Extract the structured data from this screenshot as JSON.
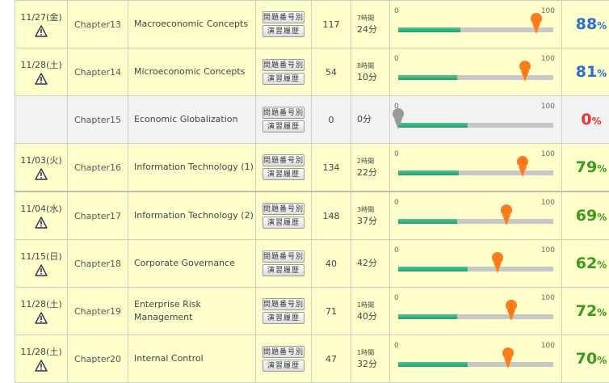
{
  "bar_scale": {
    "min_label": "0",
    "max_label": "100"
  },
  "buttons": {
    "questions_label": "問題番号別",
    "history_label": "演習履歴"
  },
  "colors": {
    "high": "#2a6fd8",
    "mid": "#3a9a1a",
    "zero": "#e53333",
    "marker": "#ff7a1a",
    "marker_inactive": "#999999"
  },
  "rows": [
    {
      "date": "11/27(金)",
      "warn": true,
      "chapter": "Chapter13",
      "title": "Macroeconomic Concepts",
      "count": "117",
      "hours": "7時間",
      "minutes": "24分",
      "progress": 0.4,
      "marker": 0.89,
      "percent_value": "88",
      "percent_unit": "%",
      "tone": "high"
    },
    {
      "date": "11/28(土)",
      "warn": true,
      "chapter": "Chapter14",
      "title": "Microeconomic Concepts",
      "count": "54",
      "hours": "8時間",
      "minutes": "10分",
      "progress": 0.38,
      "marker": 0.82,
      "percent_value": "81",
      "percent_unit": "%",
      "tone": "high"
    },
    {
      "date": "",
      "warn": false,
      "chapter": "Chapter15",
      "title": "Economic Globalization",
      "count": "0",
      "hours": "",
      "minutes": "0分",
      "progress": 0.45,
      "marker": 0.0,
      "percent_value": "0",
      "percent_unit": "%",
      "tone": "zero",
      "gray": true
    },
    {
      "date": "11/03(火)",
      "warn": true,
      "chapter": "Chapter16",
      "title": "Information Technology (1)",
      "count": "134",
      "hours": "2時間",
      "minutes": "22分",
      "progress": 0.39,
      "marker": 0.8,
      "percent_value": "79",
      "percent_unit": "%",
      "tone": "mid"
    },
    {
      "date": "11/04(水)",
      "warn": true,
      "chapter": "Chapter17",
      "title": "Information Technology (2)",
      "count": "148",
      "hours": "3時間",
      "minutes": "37分",
      "progress": 0.38,
      "marker": 0.7,
      "percent_value": "69",
      "percent_unit": "%",
      "tone": "mid",
      "topgap": true
    },
    {
      "date": "11/15(日)",
      "warn": true,
      "chapter": "Chapter18",
      "title": "Corporate Governance",
      "count": "40",
      "hours": "",
      "minutes": "42分",
      "progress": 0.45,
      "marker": 0.64,
      "percent_value": "62",
      "percent_unit": "%",
      "tone": "mid"
    },
    {
      "date": "11/28(土)",
      "warn": true,
      "chapter": "Chapter19",
      "title": "Enterprise Risk Management",
      "count": "71",
      "hours": "1時間",
      "minutes": "40分",
      "progress": 0.38,
      "marker": 0.73,
      "percent_value": "72",
      "percent_unit": "%",
      "tone": "mid"
    },
    {
      "date": "11/28(土)",
      "warn": true,
      "chapter": "Chapter20",
      "title": "Internal Control",
      "count": "47",
      "hours": "1時間",
      "minutes": "32分",
      "progress": 0.45,
      "marker": 0.71,
      "percent_value": "70",
      "percent_unit": "%",
      "tone": "mid"
    }
  ]
}
